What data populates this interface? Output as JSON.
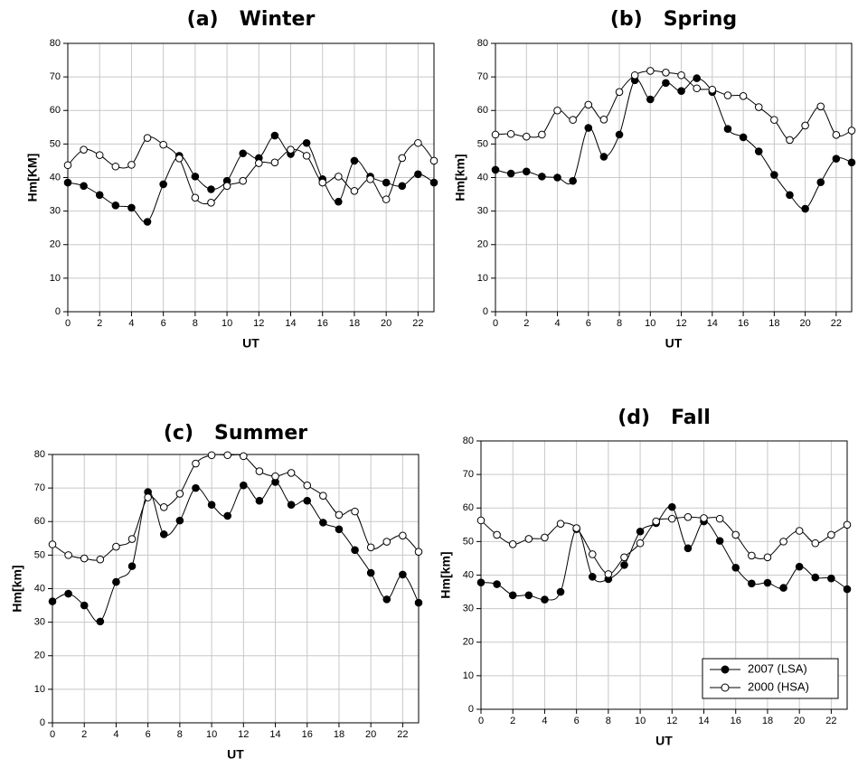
{
  "chart_data": [
    {
      "type": "line",
      "title": "(a)   Winter",
      "xlabel": "UT",
      "ylabel": "Hm[KM]",
      "x": [
        0,
        1,
        2,
        3,
        4,
        5,
        6,
        7,
        8,
        9,
        10,
        11,
        12,
        13,
        14,
        15,
        16,
        17,
        18,
        19,
        20,
        21,
        22,
        23
      ],
      "xlim": [
        0,
        23
      ],
      "xticks": [
        0,
        2,
        4,
        6,
        8,
        10,
        12,
        14,
        16,
        18,
        20,
        22
      ],
      "ylim": [
        0,
        80
      ],
      "yticks": [
        0,
        10,
        20,
        30,
        40,
        50,
        60,
        70,
        80
      ],
      "grid": true,
      "series": [
        {
          "color": "#000000",
          "marker": "filled",
          "values": [
            38.5,
            37.5,
            34.8,
            31.7,
            31,
            26.8,
            38,
            46.5,
            40.3,
            36.5,
            39,
            47.2,
            45.8,
            52.5,
            47,
            50.3,
            39.5,
            32.8,
            45,
            40.3,
            38.5,
            37.5,
            41,
            38.5
          ]
        },
        {
          "color": "#000000",
          "marker": "open",
          "values": [
            43.7,
            48.3,
            46.7,
            43.3,
            43.8,
            51.8,
            49.8,
            45.7,
            34,
            32.5,
            37.5,
            39,
            44.3,
            44.5,
            48.3,
            46.5,
            38.5,
            40.3,
            36,
            39.5,
            33.5,
            45.8,
            50.3,
            45
          ]
        }
      ]
    },
    {
      "type": "line",
      "title": "(b)   Spring",
      "xlabel": "UT",
      "ylabel": "Hm[km]",
      "x": [
        0,
        1,
        2,
        3,
        4,
        5,
        6,
        7,
        8,
        9,
        10,
        11,
        12,
        13,
        14,
        15,
        16,
        17,
        18,
        19,
        20,
        21,
        22,
        23
      ],
      "xlim": [
        0,
        23
      ],
      "xticks": [
        0,
        2,
        4,
        6,
        8,
        10,
        12,
        14,
        16,
        18,
        20,
        22
      ],
      "ylim": [
        0,
        80
      ],
      "yticks": [
        0,
        10,
        20,
        30,
        40,
        50,
        60,
        70,
        80
      ],
      "grid": true,
      "series": [
        {
          "color": "#000000",
          "marker": "filled",
          "values": [
            42.3,
            41.2,
            41.8,
            40.3,
            40,
            39,
            54.8,
            46.2,
            52.8,
            69,
            63.3,
            68.2,
            65.8,
            69.6,
            65.5,
            54.5,
            52,
            47.8,
            40.8,
            34.8,
            30.7,
            38.6,
            45.6,
            44.5
          ]
        },
        {
          "color": "#000000",
          "marker": "open",
          "values": [
            52.8,
            53,
            52.2,
            52.8,
            60,
            57.2,
            61.7,
            57.3,
            65.5,
            70.5,
            71.8,
            71.3,
            70.5,
            66.6,
            66.2,
            64.5,
            64.3,
            61,
            57.2,
            51.2,
            55.5,
            61.2,
            52.7,
            54
          ]
        }
      ]
    },
    {
      "type": "line",
      "title": "(c)   Summer",
      "xlabel": "UT",
      "ylabel": "Hm[km]",
      "x": [
        0,
        1,
        2,
        3,
        4,
        5,
        6,
        7,
        8,
        9,
        10,
        11,
        12,
        13,
        14,
        15,
        16,
        17,
        18,
        19,
        20,
        21,
        22,
        23
      ],
      "xlim": [
        0,
        23
      ],
      "xticks": [
        0,
        2,
        4,
        6,
        8,
        10,
        12,
        14,
        16,
        18,
        20,
        22
      ],
      "ylim": [
        0,
        80
      ],
      "yticks": [
        0,
        10,
        20,
        30,
        40,
        50,
        60,
        70,
        80
      ],
      "grid": true,
      "series": [
        {
          "color": "#000000",
          "marker": "filled",
          "values": [
            36.2,
            38.5,
            35,
            30.2,
            42,
            46.7,
            68.8,
            56.2,
            60.3,
            70,
            65,
            61.7,
            70.8,
            66.2,
            71.8,
            65,
            66.2,
            59.7,
            57.7,
            51.5,
            44.7,
            36.8,
            44.2,
            35.8
          ]
        },
        {
          "color": "#000000",
          "marker": "open",
          "values": [
            53.2,
            50,
            49,
            48.7,
            52.5,
            54.8,
            67.2,
            64.3,
            68.3,
            77.3,
            79.8,
            79.8,
            79.5,
            75,
            73.5,
            74.5,
            70.8,
            67.7,
            62,
            63,
            52.3,
            54,
            55.8,
            51
          ]
        }
      ]
    },
    {
      "type": "line",
      "title": "(d)   Fall",
      "xlabel": "UT",
      "ylabel": "Hm[km]",
      "x": [
        0,
        1,
        2,
        3,
        4,
        5,
        6,
        7,
        8,
        9,
        10,
        11,
        12,
        13,
        14,
        15,
        16,
        17,
        18,
        19,
        20,
        21,
        22,
        23
      ],
      "xlim": [
        0,
        23
      ],
      "xticks": [
        0,
        2,
        4,
        6,
        8,
        10,
        12,
        14,
        16,
        18,
        20,
        22
      ],
      "ylim": [
        0,
        80
      ],
      "yticks": [
        0,
        10,
        20,
        30,
        40,
        50,
        60,
        70,
        80
      ],
      "grid": true,
      "legend": "lower right",
      "series": [
        {
          "name": "2007 (LSA)",
          "color": "#000000",
          "marker": "filled",
          "values": [
            37.8,
            37.3,
            34,
            34,
            32.7,
            35,
            53.7,
            39.5,
            38.8,
            43,
            53,
            55.5,
            60.3,
            48,
            56,
            50.2,
            42.2,
            37.5,
            37.7,
            36.2,
            42.5,
            39.3,
            39,
            35.8
          ]
        },
        {
          "name": "2000 (HSA)",
          "color": "#000000",
          "marker": "open",
          "values": [
            56.3,
            52,
            49.2,
            50.8,
            51.2,
            55.3,
            54,
            46.2,
            40.3,
            45.3,
            49.5,
            56,
            56.8,
            57.3,
            57,
            56.8,
            52,
            45.8,
            45.3,
            50,
            53.2,
            49.5,
            52,
            55
          ]
        }
      ]
    }
  ]
}
